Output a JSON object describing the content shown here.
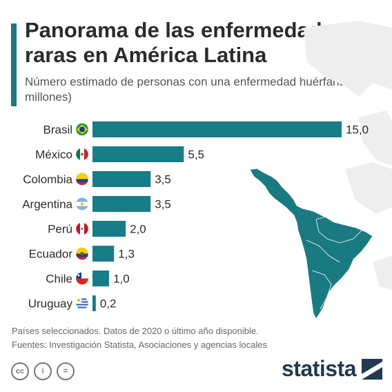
{
  "title": "Panorama de las enfermedades raras en América Latina",
  "subtitle": "Número estimado de personas con una enfermedad huérfana (en millones)",
  "chart_data": {
    "type": "bar",
    "orientation": "horizontal",
    "categories": [
      "Brasil",
      "México",
      "Colombia",
      "Argentina",
      "Perú",
      "Ecuador",
      "Chile",
      "Uruguay"
    ],
    "values": [
      15.0,
      5.5,
      3.5,
      3.5,
      2.0,
      1.3,
      1.0,
      0.2
    ],
    "value_labels": [
      "15,0",
      "5,5",
      "3,5",
      "3,5",
      "2,0",
      "1,3",
      "1,0",
      "0,2"
    ],
    "xlim": [
      0,
      15
    ],
    "grid": false,
    "bar_color": "#177d86"
  },
  "footnote": {
    "note": "Países seleccionados. Datos de 2020 o último año disponible.",
    "sources": "Fuentes: Investigación Statista, Asociaciones y agencias locales"
  },
  "license_icons": [
    {
      "name": "cc-icon",
      "glyph": "cc"
    },
    {
      "name": "attribution-icon",
      "glyph": "i"
    },
    {
      "name": "no-derivatives-icon",
      "glyph": "="
    }
  ],
  "brand": {
    "name": "statista",
    "color": "#1f3a52"
  },
  "map_color": "#1a7a82",
  "flags": [
    "brazil-flag-icon",
    "mexico-flag-icon",
    "colombia-flag-icon",
    "argentina-flag-icon",
    "peru-flag-icon",
    "ecuador-flag-icon",
    "chile-flag-icon",
    "uruguay-flag-icon"
  ]
}
